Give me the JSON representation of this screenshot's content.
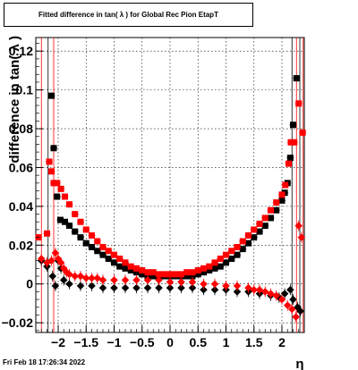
{
  "footer": "Fri Feb 18 17:26:34 2022",
  "chart_data": {
    "type": "scatter",
    "title": "Fitted difference in tan( λ ) for Global Rec Pion EtapT",
    "xlabel": "η",
    "ylabel": "difference in tan( λ )",
    "xlim": [
      -2.4,
      2.4
    ],
    "ylim": [
      -0.025,
      0.127
    ],
    "x_ticks": [
      -2,
      -1.5,
      -1,
      -0.5,
      0,
      0.5,
      1,
      1.5,
      2
    ],
    "x_tick_labels": [
      "−2",
      "−1.5",
      "−1",
      "−0.5",
      "0",
      "0.5",
      "1",
      "1.5",
      "2"
    ],
    "y_ticks": [
      -0.02,
      0,
      0.02,
      0.04,
      0.06,
      0.08,
      0.1,
      0.12
    ],
    "y_tick_labels": [
      "−0.02",
      "0",
      "0.02",
      "0.04",
      "0.06",
      "0.08",
      "0.1",
      "0.12"
    ],
    "grid": true,
    "colors": {
      "black": "#000000",
      "red": "#ff0000"
    },
    "series": [
      {
        "color": "#000000",
        "role": "width",
        "points": [
          [
            -2.12,
            0.097
          ],
          [
            -2.08,
            0.07
          ],
          [
            -2.02,
            0.045
          ],
          [
            -1.96,
            0.033
          ],
          [
            -1.88,
            0.032
          ],
          [
            -1.8,
            0.03
          ],
          [
            -1.7,
            0.027
          ],
          [
            -1.6,
            0.024
          ],
          [
            -1.5,
            0.021
          ],
          [
            -1.4,
            0.019
          ],
          [
            -1.3,
            0.017
          ],
          [
            -1.2,
            0.015
          ],
          [
            -1.1,
            0.013
          ],
          [
            -1.0,
            0.011
          ],
          [
            -0.9,
            0.009
          ],
          [
            -0.8,
            0.008
          ],
          [
            -0.7,
            0.007
          ],
          [
            -0.6,
            0.006
          ],
          [
            -0.5,
            0.005
          ],
          [
            -0.4,
            0.004
          ],
          [
            -0.3,
            0.004
          ],
          [
            -0.2,
            0.004
          ],
          [
            -0.1,
            0.004
          ],
          [
            0.0,
            0.004
          ],
          [
            0.1,
            0.004
          ],
          [
            0.2,
            0.004
          ],
          [
            0.3,
            0.004
          ],
          [
            0.4,
            0.004
          ],
          [
            0.5,
            0.005
          ],
          [
            0.6,
            0.006
          ],
          [
            0.7,
            0.007
          ],
          [
            0.8,
            0.008
          ],
          [
            0.9,
            0.009
          ],
          [
            1.0,
            0.011
          ],
          [
            1.1,
            0.013
          ],
          [
            1.2,
            0.015
          ],
          [
            1.3,
            0.018
          ],
          [
            1.4,
            0.021
          ],
          [
            1.5,
            0.024
          ],
          [
            1.6,
            0.027
          ],
          [
            1.7,
            0.03
          ],
          [
            1.8,
            0.034
          ],
          [
            1.9,
            0.038
          ],
          [
            2.0,
            0.043
          ],
          [
            2.05,
            0.047
          ],
          [
            2.1,
            0.052
          ],
          [
            2.15,
            0.065
          ],
          [
            2.2,
            0.082
          ],
          [
            2.26,
            0.106
          ]
        ]
      },
      {
        "color": "#ff0000",
        "role": "width",
        "points": [
          [
            -2.35,
            0.024
          ],
          [
            -2.2,
            0.026
          ],
          [
            -2.16,
            0.063
          ],
          [
            -2.12,
            0.058
          ],
          [
            -2.08,
            0.052
          ],
          [
            -2.02,
            0.052
          ],
          [
            -1.95,
            0.049
          ],
          [
            -1.88,
            0.045
          ],
          [
            -1.8,
            0.041
          ],
          [
            -1.7,
            0.036
          ],
          [
            -1.6,
            0.032
          ],
          [
            -1.5,
            0.028
          ],
          [
            -1.4,
            0.025
          ],
          [
            -1.3,
            0.022
          ],
          [
            -1.2,
            0.019
          ],
          [
            -1.1,
            0.017
          ],
          [
            -1.0,
            0.015
          ],
          [
            -0.9,
            0.013
          ],
          [
            -0.8,
            0.011
          ],
          [
            -0.7,
            0.009
          ],
          [
            -0.6,
            0.008
          ],
          [
            -0.5,
            0.007
          ],
          [
            -0.4,
            0.006
          ],
          [
            -0.3,
            0.006
          ],
          [
            -0.2,
            0.005
          ],
          [
            -0.1,
            0.005
          ],
          [
            0.0,
            0.005
          ],
          [
            0.1,
            0.005
          ],
          [
            0.2,
            0.005
          ],
          [
            0.3,
            0.006
          ],
          [
            0.4,
            0.006
          ],
          [
            0.5,
            0.007
          ],
          [
            0.6,
            0.008
          ],
          [
            0.7,
            0.009
          ],
          [
            0.8,
            0.011
          ],
          [
            0.9,
            0.013
          ],
          [
            1.0,
            0.015
          ],
          [
            1.1,
            0.017
          ],
          [
            1.2,
            0.019
          ],
          [
            1.3,
            0.022
          ],
          [
            1.4,
            0.025
          ],
          [
            1.5,
            0.028
          ],
          [
            1.6,
            0.031
          ],
          [
            1.7,
            0.034
          ],
          [
            1.8,
            0.038
          ],
          [
            1.9,
            0.042
          ],
          [
            2.0,
            0.046
          ],
          [
            2.06,
            0.051
          ],
          [
            2.12,
            0.062
          ],
          [
            2.16,
            0.073
          ],
          [
            2.22,
            0.073
          ],
          [
            2.3,
            0.093
          ],
          [
            2.37,
            0.078
          ]
        ]
      },
      {
        "color": "#000000",
        "role": "mean",
        "points": [
          [
            -2.3,
            0.012
          ],
          [
            -2.2,
            0.009
          ],
          [
            -2.1,
            0.004
          ],
          [
            -2.05,
            -0.001
          ],
          [
            -2.0,
            0.012
          ],
          [
            -1.95,
            0.008
          ],
          [
            -1.9,
            0.002
          ],
          [
            -1.8,
            0.0
          ],
          [
            -1.6,
            -0.001
          ],
          [
            -1.4,
            -0.001
          ],
          [
            -1.2,
            -0.002
          ],
          [
            -1.0,
            -0.002
          ],
          [
            -0.8,
            -0.002
          ],
          [
            -0.6,
            -0.002
          ],
          [
            -0.4,
            -0.002
          ],
          [
            -0.2,
            -0.002
          ],
          [
            0.0,
            -0.002
          ],
          [
            0.2,
            -0.002
          ],
          [
            0.4,
            -0.002
          ],
          [
            0.6,
            -0.003
          ],
          [
            0.8,
            -0.003
          ],
          [
            1.0,
            -0.003
          ],
          [
            1.2,
            -0.004
          ],
          [
            1.4,
            -0.004
          ],
          [
            1.6,
            -0.005
          ],
          [
            1.8,
            -0.006
          ],
          [
            1.95,
            -0.007
          ],
          [
            2.05,
            -0.005
          ],
          [
            2.15,
            -0.003
          ],
          [
            2.2,
            -0.008
          ],
          [
            2.28,
            -0.012
          ],
          [
            2.33,
            -0.014
          ]
        ]
      },
      {
        "color": "#ff0000",
        "role": "mean",
        "points": [
          [
            -2.3,
            0.013
          ],
          [
            -2.2,
            0.011
          ],
          [
            -2.12,
            0.012
          ],
          [
            -2.05,
            0.016
          ],
          [
            -2.0,
            0.013
          ],
          [
            -1.95,
            0.011
          ],
          [
            -1.9,
            0.008
          ],
          [
            -1.85,
            0.006
          ],
          [
            -1.8,
            0.005
          ],
          [
            -1.7,
            0.004
          ],
          [
            -1.6,
            0.004
          ],
          [
            -1.5,
            0.003
          ],
          [
            -1.4,
            0.003
          ],
          [
            -1.3,
            0.003
          ],
          [
            -1.2,
            0.002
          ],
          [
            -1.0,
            0.002
          ],
          [
            -0.8,
            0.002
          ],
          [
            -0.6,
            0.002
          ],
          [
            -0.4,
            0.002
          ],
          [
            -0.2,
            0.002
          ],
          [
            0.0,
            0.001
          ],
          [
            0.2,
            0.001
          ],
          [
            0.4,
            0.001
          ],
          [
            0.6,
            0.0
          ],
          [
            0.8,
            0.0
          ],
          [
            1.0,
            -0.001
          ],
          [
            1.2,
            -0.001
          ],
          [
            1.4,
            -0.002
          ],
          [
            1.5,
            -0.003
          ],
          [
            1.6,
            -0.003
          ],
          [
            1.7,
            -0.004
          ],
          [
            1.8,
            -0.005
          ],
          [
            1.9,
            -0.006
          ],
          [
            2.0,
            -0.008
          ],
          [
            2.1,
            -0.011
          ],
          [
            2.18,
            -0.013
          ],
          [
            2.25,
            -0.017
          ],
          [
            2.3,
            0.03
          ],
          [
            2.35,
            0.024
          ]
        ]
      }
    ],
    "error_band_x": [
      -2.3,
      -2.18,
      -2.08,
      2.18,
      2.26,
      2.32,
      2.38
    ]
  }
}
